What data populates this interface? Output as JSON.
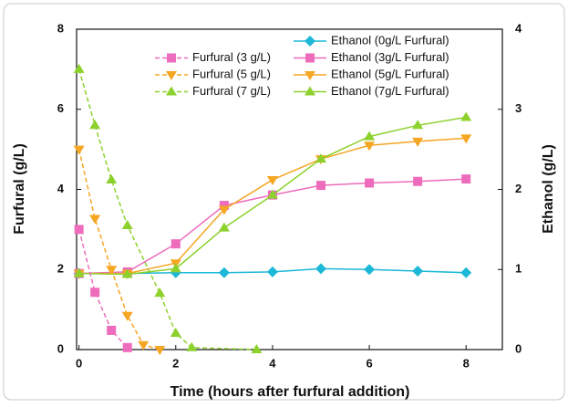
{
  "chart_data": {
    "type": "line",
    "x_label": "Time (hours after furfural addition)",
    "y_label": "Furfural (g/L)",
    "y2_label": "Ethanol (g/L)",
    "xlim": [
      -0.05,
      8.75
    ],
    "xticks": [
      0,
      2,
      4,
      6,
      8
    ],
    "ylim": [
      0,
      8
    ],
    "yticks": [
      0,
      2,
      4,
      6,
      8
    ],
    "y2lim": [
      0,
      4
    ],
    "y2ticks": [
      0,
      1,
      2,
      3,
      4
    ],
    "series": [
      {
        "name": "Ethanol (0g/L Furfural)",
        "color": "#1db8d8",
        "marker": "diamond",
        "linestyle": "solid",
        "axis": "y2",
        "x": [
          0,
          1,
          2,
          3,
          4,
          5,
          6,
          7,
          8
        ],
        "values": [
          0.95,
          0.95,
          0.96,
          0.96,
          0.97,
          1.01,
          1.0,
          0.98,
          0.96
        ]
      },
      {
        "name": "Ethanol (3g/L Furfural)",
        "color": "#ee6cbc",
        "marker": "square",
        "linestyle": "solid",
        "axis": "y2",
        "x": [
          0,
          1,
          2,
          3,
          4,
          5,
          6,
          7,
          8
        ],
        "values": [
          0.95,
          0.97,
          1.32,
          1.8,
          1.93,
          2.05,
          2.08,
          2.1,
          2.13
        ]
      },
      {
        "name": "Ethanol (5g/L Furfural)",
        "color": "#f5a623",
        "marker": "triangle-down",
        "linestyle": "solid",
        "axis": "y2",
        "x": [
          0,
          1,
          2,
          3,
          4,
          5,
          6,
          7,
          8
        ],
        "values": [
          0.95,
          0.95,
          1.08,
          1.75,
          2.12,
          2.38,
          2.55,
          2.6,
          2.64
        ]
      },
      {
        "name": "Ethanol (7g/L Furfural)",
        "color": "#8cd12c",
        "marker": "triangle-up",
        "linestyle": "solid",
        "axis": "y2",
        "x": [
          0,
          1,
          2,
          3,
          4,
          5,
          6,
          7,
          8
        ],
        "values": [
          0.95,
          0.94,
          1.01,
          1.52,
          1.93,
          2.38,
          2.66,
          2.8,
          2.9
        ]
      },
      {
        "name": "Furfural (3 g/L)",
        "color": "#ee6cbc",
        "marker": "square",
        "linestyle": "dashed",
        "axis": "y",
        "x": [
          0,
          0.33,
          0.67,
          1.0
        ],
        "values": [
          3.0,
          1.43,
          0.48,
          0.05
        ]
      },
      {
        "name": "Furfural (5 g/L)",
        "color": "#f5a623",
        "marker": "triangle-down",
        "linestyle": "dashed",
        "axis": "y",
        "x": [
          0,
          0.33,
          0.67,
          1.0,
          1.33,
          1.67
        ],
        "values": [
          5.0,
          3.27,
          2.0,
          0.85,
          0.12,
          0.0
        ]
      },
      {
        "name": "Furfural (7 g/L)",
        "color": "#8cd12c",
        "marker": "triangle-up",
        "linestyle": "dashed",
        "axis": "y",
        "x": [
          0,
          0.33,
          0.67,
          1.0,
          1.67,
          2.0,
          2.33,
          3.67
        ],
        "values": [
          7.0,
          5.6,
          4.24,
          3.1,
          1.41,
          0.41,
          0.05,
          0.0
        ]
      }
    ]
  }
}
